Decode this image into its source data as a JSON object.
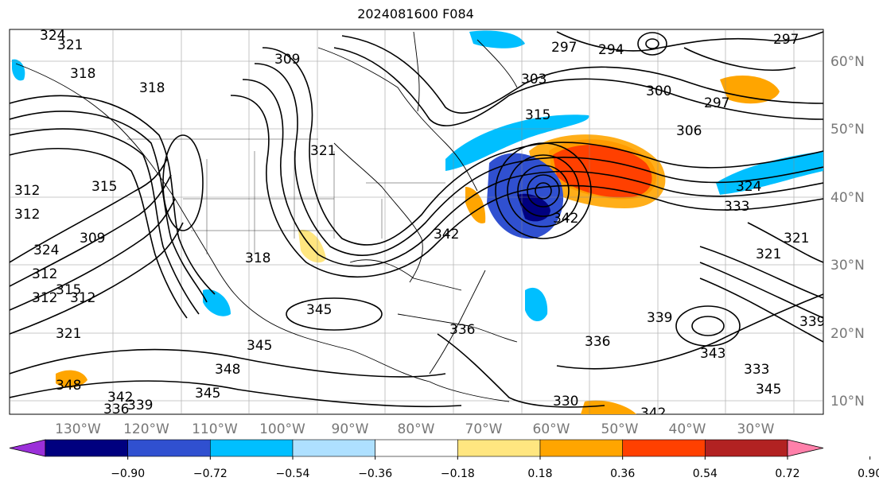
{
  "title": "2024081600 F084",
  "lon_labels": [
    "130°W",
    "120°W",
    "110°W",
    "100°W",
    "90°W",
    "80°W",
    "70°W",
    "60°W",
    "50°W",
    "40°W",
    "30°W"
  ],
  "lat_labels": [
    "60°N",
    "50°N",
    "40°N",
    "30°N",
    "20°N",
    "10°N"
  ],
  "colorbar": {
    "colors": [
      "#9b30d9",
      "#00007f",
      "#3050d0",
      "#00bfff",
      "#aee0ff",
      "#ffffff",
      "#ffe680",
      "#ffa500",
      "#ff4000",
      "#b22222",
      "#ff80aa"
    ],
    "tick_labels": [
      "−0.90",
      "−0.72",
      "−0.54",
      "−0.36",
      "−0.18",
      "0.18",
      "0.36",
      "0.54",
      "0.72",
      "0.90"
    ]
  },
  "contour_labels": [
    "324",
    "321",
    "318",
    "318",
    "309",
    "303",
    "297",
    "294",
    "297",
    "300",
    "297",
    "306",
    "312",
    "312",
    "312",
    "315",
    "324",
    "309",
    "321",
    "315",
    "312",
    "312",
    "315",
    "321",
    "318",
    "345",
    "342",
    "324",
    "333",
    "321",
    "321",
    "339",
    "336",
    "342",
    "345",
    "348",
    "348",
    "342",
    "339",
    "336",
    "345",
    "339",
    "330",
    "342",
    "343",
    "333",
    "345",
    "336"
  ]
}
